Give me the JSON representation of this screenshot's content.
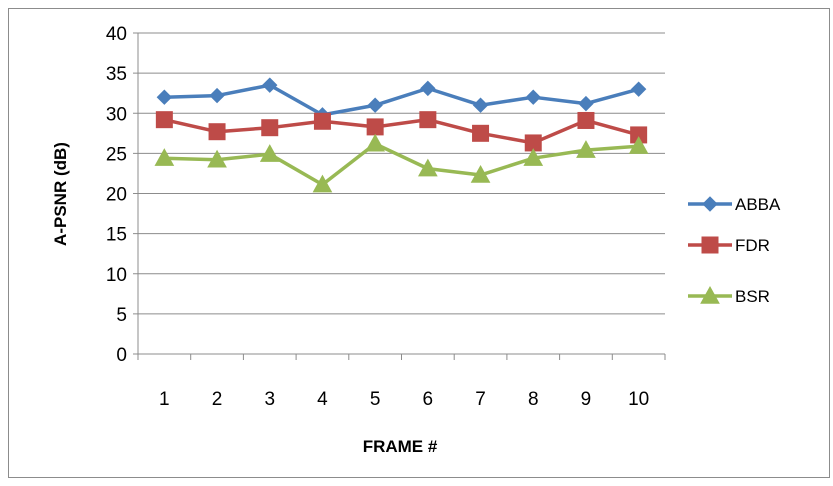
{
  "chart_data": {
    "type": "line",
    "title": "",
    "xlabel": "FRAME #",
    "ylabel": "A-PSNR (dB)",
    "categories": [
      "1",
      "2",
      "3",
      "4",
      "5",
      "6",
      "7",
      "8",
      "9",
      "10"
    ],
    "ylim": [
      0,
      40
    ],
    "yticks": [
      "0",
      "5",
      "10",
      "15",
      "20",
      "25",
      "30",
      "35",
      "40"
    ],
    "grid": true,
    "legend_position": "right",
    "series": [
      {
        "name": "ABBA",
        "color": "#4a7ebb",
        "marker": "diamond",
        "values": [
          32.0,
          32.2,
          33.5,
          29.8,
          31.0,
          33.1,
          31.0,
          32.0,
          31.2,
          33.0
        ]
      },
      {
        "name": "FDR",
        "color": "#be4b48",
        "marker": "square",
        "values": [
          29.2,
          27.7,
          28.2,
          29.0,
          28.3,
          29.2,
          27.5,
          26.3,
          29.1,
          27.3
        ]
      },
      {
        "name": "BSR",
        "color": "#98b954",
        "marker": "triangle",
        "values": [
          24.4,
          24.2,
          24.9,
          21.1,
          26.2,
          23.1,
          22.3,
          24.4,
          25.4,
          25.9
        ]
      }
    ]
  }
}
